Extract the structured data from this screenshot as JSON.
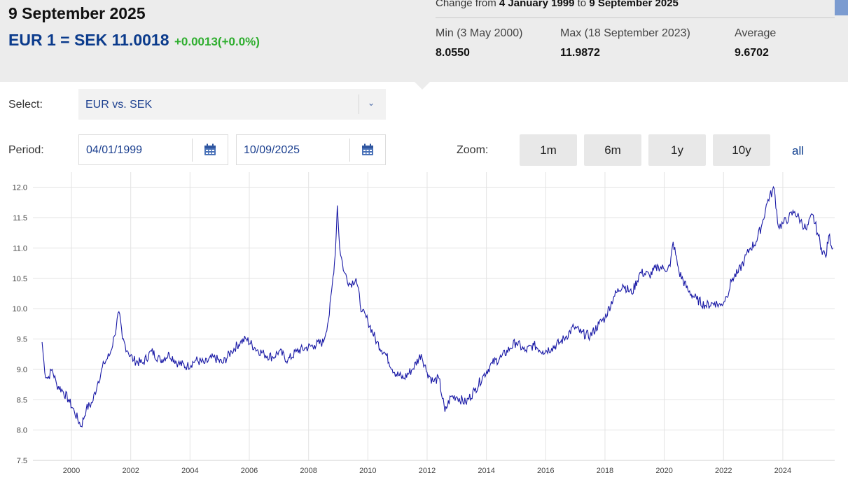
{
  "header": {
    "date_title": "9 September 2025",
    "rate": "EUR 1 = SEK 11.0018",
    "rate_change": "+0.0013(+0.0%)"
  },
  "summary": {
    "change_prefix": "Change from ",
    "change_start": "4 January 1999",
    "change_mid": " to ",
    "change_end": "9 September 2025",
    "min_label": "Min (3 May 2000)",
    "min_value": "8.0550",
    "max_label": "Max (18 September 2023)",
    "max_value": "11.9872",
    "avg_label": "Average",
    "avg_value": "9.6702"
  },
  "controls": {
    "select_label": "Select:",
    "select_value": "EUR vs. SEK",
    "period_label": "Period:",
    "from_date": "04/01/1999",
    "to_date": "10/09/2025",
    "zoom_label": "Zoom:",
    "zoom_options": [
      "1m",
      "6m",
      "1y",
      "10y",
      "all"
    ]
  },
  "colors": {
    "series": "#1a1aa6",
    "brand": "#0b3b8c",
    "positive": "#2fae2f"
  },
  "chart_data": {
    "type": "line",
    "title": "",
    "xlabel": "",
    "ylabel": "",
    "xlim": [
      1998.7,
      2025.75
    ],
    "ylim": [
      7.5,
      12.25
    ],
    "x_ticks": [
      "2000",
      "2002",
      "2004",
      "2006",
      "2008",
      "2010",
      "2012",
      "2014",
      "2016",
      "2018",
      "2020",
      "2022",
      "2024"
    ],
    "y_ticks": [
      "7.5",
      "8.0",
      "8.5",
      "9.0",
      "9.5",
      "10.0",
      "10.5",
      "11.0",
      "11.5",
      "12.0"
    ],
    "grid": true,
    "series": [
      {
        "x": [
          1999.01,
          1999.1,
          1999.2,
          1999.35,
          1999.5,
          1999.7,
          1999.9,
          2000.1,
          2000.33,
          2000.5,
          2000.7,
          2000.9,
          2001.1,
          2001.3,
          2001.45,
          2001.6,
          2001.72,
          2001.9,
          2002.1,
          2002.4,
          2002.7,
          2003.0,
          2003.3,
          2003.6,
          2003.9,
          2004.2,
          2004.5,
          2004.8,
          2005.1,
          2005.4,
          2005.7,
          2005.9,
          2006.2,
          2006.5,
          2006.8,
          2007.0,
          2007.3,
          2007.6,
          2007.9,
          2008.2,
          2008.5,
          2008.7,
          2008.8,
          2008.9,
          2008.97,
          2009.05,
          2009.2,
          2009.4,
          2009.6,
          2009.8,
          2010.0,
          2010.3,
          2010.6,
          2010.9,
          2011.2,
          2011.5,
          2011.8,
          2012.0,
          2012.2,
          2012.4,
          2012.6,
          2012.8,
          2013.0,
          2013.3,
          2013.6,
          2013.9,
          2014.2,
          2014.5,
          2014.8,
          2015.0,
          2015.3,
          2015.6,
          2015.9,
          2016.2,
          2016.5,
          2016.7,
          2016.95,
          2017.2,
          2017.5,
          2017.8,
          2018.0,
          2018.3,
          2018.6,
          2018.9,
          2019.2,
          2019.5,
          2019.8,
          2020.0,
          2020.2,
          2020.3,
          2020.5,
          2020.8,
          2021.1,
          2021.4,
          2021.7,
          2021.9,
          2022.1,
          2022.3,
          2022.5,
          2022.7,
          2022.9,
          2023.1,
          2023.3,
          2023.5,
          2023.71,
          2023.85,
          2024.0,
          2024.2,
          2024.4,
          2024.6,
          2024.8,
          2025.0,
          2025.2,
          2025.3,
          2025.45,
          2025.55,
          2025.69
        ],
        "y": [
          9.45,
          8.95,
          8.85,
          9.0,
          8.75,
          8.65,
          8.5,
          8.3,
          8.06,
          8.35,
          8.45,
          8.8,
          9.1,
          9.25,
          9.55,
          9.95,
          9.5,
          9.3,
          9.15,
          9.1,
          9.3,
          9.15,
          9.25,
          9.1,
          9.05,
          9.15,
          9.1,
          9.2,
          9.1,
          9.3,
          9.45,
          9.5,
          9.35,
          9.25,
          9.2,
          9.3,
          9.15,
          9.3,
          9.35,
          9.4,
          9.45,
          9.9,
          10.4,
          10.9,
          11.7,
          11.0,
          10.6,
          10.4,
          10.5,
          9.95,
          9.8,
          9.45,
          9.25,
          8.95,
          8.85,
          9.0,
          9.25,
          8.95,
          8.8,
          8.85,
          8.3,
          8.55,
          8.55,
          8.45,
          8.65,
          8.9,
          9.1,
          9.2,
          9.35,
          9.45,
          9.3,
          9.4,
          9.3,
          9.35,
          9.45,
          9.55,
          9.7,
          9.6,
          9.55,
          9.75,
          9.85,
          10.2,
          10.4,
          10.25,
          10.6,
          10.55,
          10.7,
          10.65,
          10.7,
          11.1,
          10.6,
          10.3,
          10.15,
          10.05,
          10.1,
          10.05,
          10.2,
          10.5,
          10.6,
          10.8,
          11.0,
          11.1,
          11.4,
          11.8,
          11.98,
          11.35,
          11.4,
          11.5,
          11.6,
          11.45,
          11.3,
          11.55,
          11.2,
          11.0,
          10.85,
          11.2,
          11.0
        ]
      }
    ]
  }
}
